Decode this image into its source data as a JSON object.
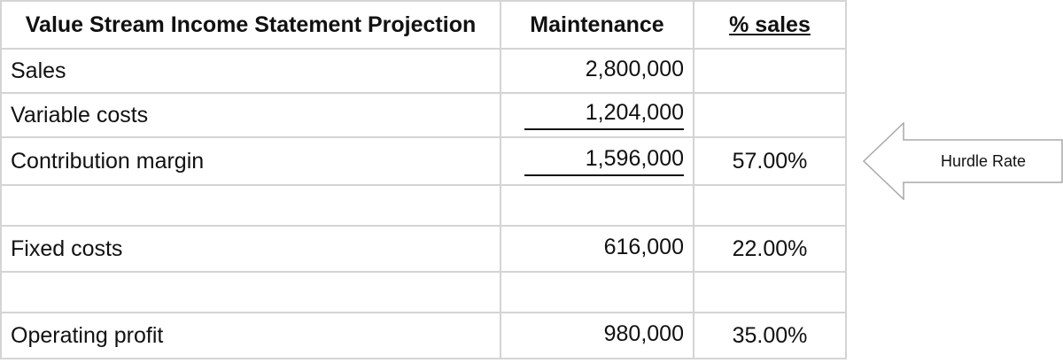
{
  "table": {
    "headers": {
      "title": "Value Stream Income Statement Projection",
      "value_col": "Maintenance",
      "pct_col": "% sales"
    },
    "rows": [
      {
        "label": "Sales",
        "value": "2,800,000",
        "pct": ""
      },
      {
        "label": "Variable costs",
        "value": "1,204,000",
        "pct": ""
      },
      {
        "label": "Contribution margin",
        "value": "1,596,000",
        "pct": "57.00%"
      },
      {
        "label": "",
        "value": "",
        "pct": ""
      },
      {
        "label": "Fixed costs",
        "value": "616,000",
        "pct": "22.00%"
      },
      {
        "label": "",
        "value": "",
        "pct": ""
      },
      {
        "label": "Operating profit",
        "value": "980,000",
        "pct": "35.00%"
      }
    ]
  },
  "callout": {
    "label": "Hurdle Rate",
    "icon": "left-arrow-callout-icon"
  },
  "colors": {
    "gridline": "#d4d4d4",
    "text": "#111111",
    "background": "#ffffff"
  }
}
